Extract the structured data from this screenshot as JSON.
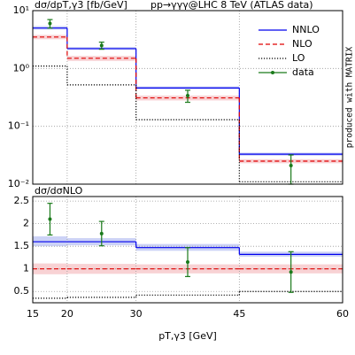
{
  "chart_data": [
    {
      "type": "histogram",
      "ylabel": "dσ/dpT,γ3 [fb/GeV]",
      "title": "pp→γγγ@LHC 8 TeV (ATLAS data)",
      "note": "produced with MATRIX",
      "log_y": true,
      "grid": true,
      "legend": "upper right",
      "bins": [
        15,
        20,
        30,
        45,
        60
      ],
      "xlim": [
        15,
        60
      ],
      "ylim": [
        0.01,
        10
      ],
      "yticks": [
        {
          "value": 0.01,
          "label": "10⁻²"
        },
        {
          "value": 0.1,
          "label": "10⁻¹"
        },
        {
          "value": 1,
          "label": "10⁰"
        },
        {
          "value": 10,
          "label": "10¹"
        }
      ],
      "series": [
        {
          "name": "NNLO",
          "color": "#0000ee",
          "band_color": "#aab4f0",
          "linestyle": "solid",
          "values": [
            5.0,
            2.2,
            0.46,
            0.033
          ],
          "band_low": [
            4.7,
            2.1,
            0.44,
            0.031
          ],
          "band_high": [
            5.4,
            2.35,
            0.49,
            0.035
          ]
        },
        {
          "name": "NLO",
          "color": "#e00000",
          "band_color": "#f4b4b8",
          "linestyle": "dashed",
          "values": [
            3.5,
            1.5,
            0.31,
            0.025
          ],
          "band_low": [
            3.2,
            1.35,
            0.28,
            0.023
          ],
          "band_high": [
            3.8,
            1.65,
            0.34,
            0.027
          ]
        },
        {
          "name": "LO",
          "color": "#000000",
          "linestyle": "dotted",
          "values": [
            1.1,
            0.52,
            0.13,
            0.011
          ]
        }
      ],
      "points": {
        "name": "data",
        "color": "#1a7a1a",
        "x": [
          17.5,
          25,
          37.5,
          52.5
        ],
        "values": [
          6.0,
          2.5,
          0.34,
          0.021
        ],
        "errors": [
          1.0,
          0.35,
          0.08,
          0.011
        ]
      }
    },
    {
      "type": "histogram",
      "ylabel": "dσ/dσNLO",
      "xlabel": "pT,γ3 [GeV]",
      "grid": true,
      "bins": [
        15,
        20,
        30,
        45,
        60
      ],
      "xlim": [
        15,
        60
      ],
      "xticks": [
        15,
        20,
        30,
        45,
        60
      ],
      "ylim": [
        0.25,
        2.6
      ],
      "yticks": [
        0.5,
        1,
        1.5,
        2,
        2.5
      ],
      "series": [
        {
          "color": "#0000ee",
          "band_color": "#aab4f0",
          "linestyle": "solid",
          "values": [
            1.6,
            1.6,
            1.47,
            1.32
          ],
          "band_low": [
            1.5,
            1.52,
            1.4,
            1.27
          ],
          "band_high": [
            1.72,
            1.68,
            1.55,
            1.38
          ]
        },
        {
          "color": "#e00000",
          "band_color": "#f4b4b8",
          "linestyle": "dashed",
          "values": [
            1,
            1,
            1,
            1
          ],
          "band_low": [
            0.88,
            0.89,
            0.9,
            0.9
          ],
          "band_high": [
            1.12,
            1.11,
            1.1,
            1.1
          ]
        },
        {
          "color": "#000000",
          "linestyle": "dotted",
          "values": [
            0.35,
            0.37,
            0.42,
            0.5
          ]
        }
      ],
      "points": {
        "color": "#1a7a1a",
        "x": [
          17.5,
          25,
          37.5,
          52.5
        ],
        "values": [
          2.1,
          1.78,
          1.15,
          0.93
        ],
        "errors": [
          0.35,
          0.27,
          0.32,
          0.45
        ]
      }
    }
  ]
}
